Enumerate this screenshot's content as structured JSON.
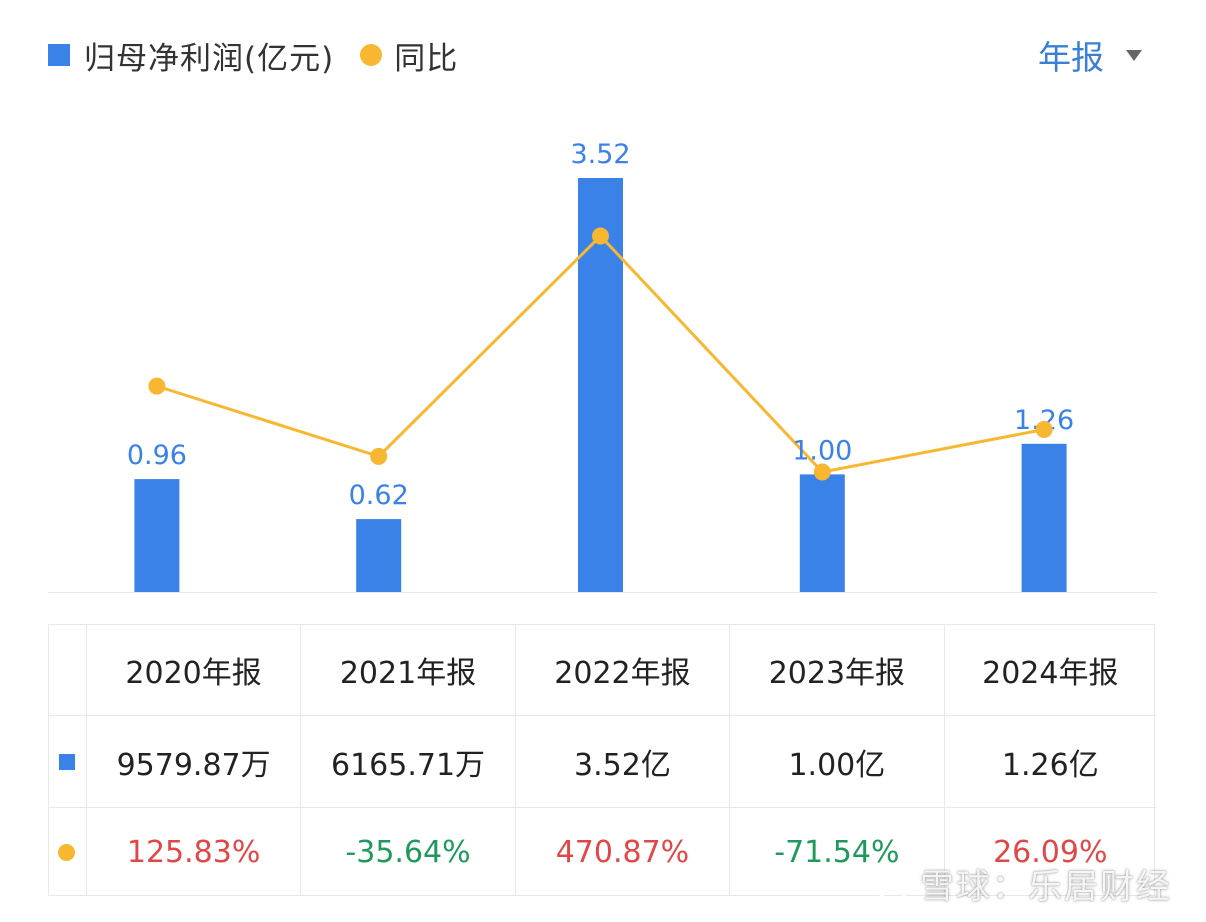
{
  "legend": {
    "bar_label": "归母净利润(亿元)",
    "line_label": "同比",
    "bar_color": "#3b82e8",
    "line_color": "#f7b731"
  },
  "period_selector": {
    "label": "年报",
    "color": "#3a7fd5",
    "icon": "caret-down-icon"
  },
  "chart_data": {
    "type": "bar",
    "categories": [
      "2020年报",
      "2021年报",
      "2022年报",
      "2023年报",
      "2024年报"
    ],
    "series": [
      {
        "name": "归母净利润(亿元)",
        "type": "bar",
        "axis": "left",
        "values": [
          0.96,
          0.62,
          3.52,
          1.0,
          1.26
        ],
        "labels": [
          "0.96",
          "0.62",
          "3.52",
          "1.00",
          "1.26"
        ],
        "color": "#3b82e8"
      },
      {
        "name": "同比",
        "type": "line",
        "axis": "right",
        "values": [
          125.83,
          -35.64,
          470.87,
          -71.54,
          26.09
        ],
        "color": "#f7b731"
      }
    ],
    "ylim_left": [
      0,
      3.52
    ],
    "ylim_right": [
      -71.54,
      470.87
    ],
    "grid": false
  },
  "table": {
    "headers": [
      "2020年报",
      "2021年报",
      "2022年报",
      "2023年报",
      "2024年报"
    ],
    "bar_row": [
      "9579.87万",
      "6165.71万",
      "3.52亿",
      "1.00亿",
      "1.26亿"
    ],
    "pct_row": [
      "125.83%",
      "-35.64%",
      "470.87%",
      "-71.54%",
      "26.09%"
    ],
    "positive_color": "#e04848",
    "negative_color": "#1f9a5c"
  },
  "watermark": {
    "text": "雪球：乐居财经",
    "icon": "xueqiu-logo-icon"
  }
}
